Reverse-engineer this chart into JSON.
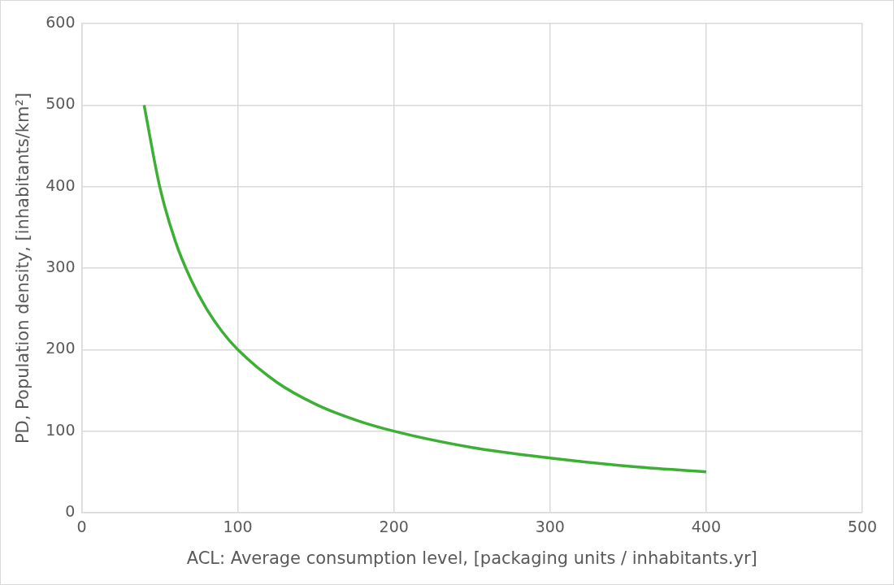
{
  "chart_data": {
    "type": "line",
    "xlabel": "ACL: Average consumption level, [packaging units / inhabitants.yr]",
    "ylabel": "PD, Population density, [inhabitants/km²]",
    "x": [
      40,
      50,
      60,
      70,
      80,
      90,
      100,
      125,
      150,
      175,
      200,
      250,
      300,
      350,
      400
    ],
    "series": [
      {
        "color": "#3cb034",
        "values": [
          500,
          400,
          333,
          286,
          250,
          222,
          200,
          160,
          133,
          114,
          100,
          80,
          67,
          57,
          50
        ]
      }
    ],
    "xlim": [
      0,
      500
    ],
    "xticks": [
      0,
      100,
      200,
      300,
      400,
      500
    ],
    "ylim": [
      0,
      600
    ],
    "yticks": [
      0,
      100,
      200,
      300,
      400,
      500,
      600
    ],
    "grid": true,
    "legend": false,
    "marker": "none",
    "line_style": "solid"
  }
}
